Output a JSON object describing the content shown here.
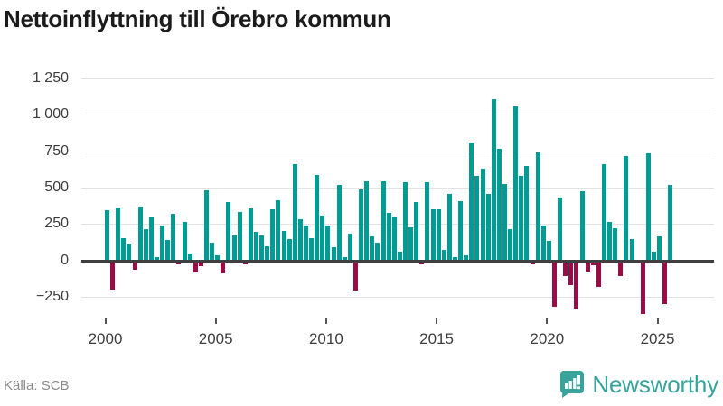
{
  "title": "Nettoinflyttning till Örebro kommun",
  "source": "Källa: SCB",
  "logo": {
    "text": "Newsworthy",
    "icon": "newsworthy-badge-icon"
  },
  "colors": {
    "positive": "#009b93",
    "negative": "#9b0b45",
    "grid": "#e2e2e2",
    "zero_line": "#3f3f3f",
    "axis_text": "#3d3d3d",
    "title_text": "#1b1b1b",
    "source_text": "#8a8a8a",
    "logo_teal": "#38a39b"
  },
  "chart_data": {
    "type": "bar",
    "title": "Nettoinflyttning till Örebro kommun",
    "frequency": "quarterly",
    "start_quarter": "2000Q1",
    "end_quarter": "2025Q3",
    "values": [
      345,
      -200,
      365,
      155,
      115,
      -65,
      370,
      215,
      300,
      25,
      240,
      140,
      320,
      -30,
      265,
      50,
      -85,
      -40,
      485,
      120,
      35,
      -90,
      400,
      170,
      335,
      -25,
      360,
      195,
      175,
      95,
      350,
      415,
      200,
      145,
      660,
      285,
      240,
      155,
      590,
      310,
      240,
      90,
      520,
      25,
      185,
      -205,
      490,
      545,
      165,
      120,
      545,
      325,
      305,
      60,
      535,
      225,
      400,
      -30,
      540,
      350,
      350,
      75,
      455,
      25,
      405,
      35,
      810,
      580,
      630,
      455,
      1110,
      765,
      525,
      215,
      1060,
      580,
      650,
      -30,
      740,
      240,
      135,
      -320,
      430,
      -110,
      -170,
      -330,
      475,
      -75,
      -35,
      -185,
      660,
      265,
      220,
      -110,
      715,
      145,
      0,
      -365,
      735,
      60,
      165,
      -300,
      520
    ],
    "x_tick_labels": [
      "2000",
      "2005",
      "2010",
      "2015",
      "2020",
      "2025"
    ],
    "x_tick_years": [
      2000,
      2005,
      2010,
      2015,
      2020,
      2025
    ],
    "y_ticks": [
      1250,
      1000,
      750,
      500,
      250,
      0,
      -250
    ],
    "y_tick_labels": [
      "1 250",
      "1 000",
      "750",
      "500",
      "250",
      "0",
      "−250"
    ],
    "ylim": [
      -380,
      1300
    ],
    "grid": "horizontal",
    "legend": "none"
  }
}
